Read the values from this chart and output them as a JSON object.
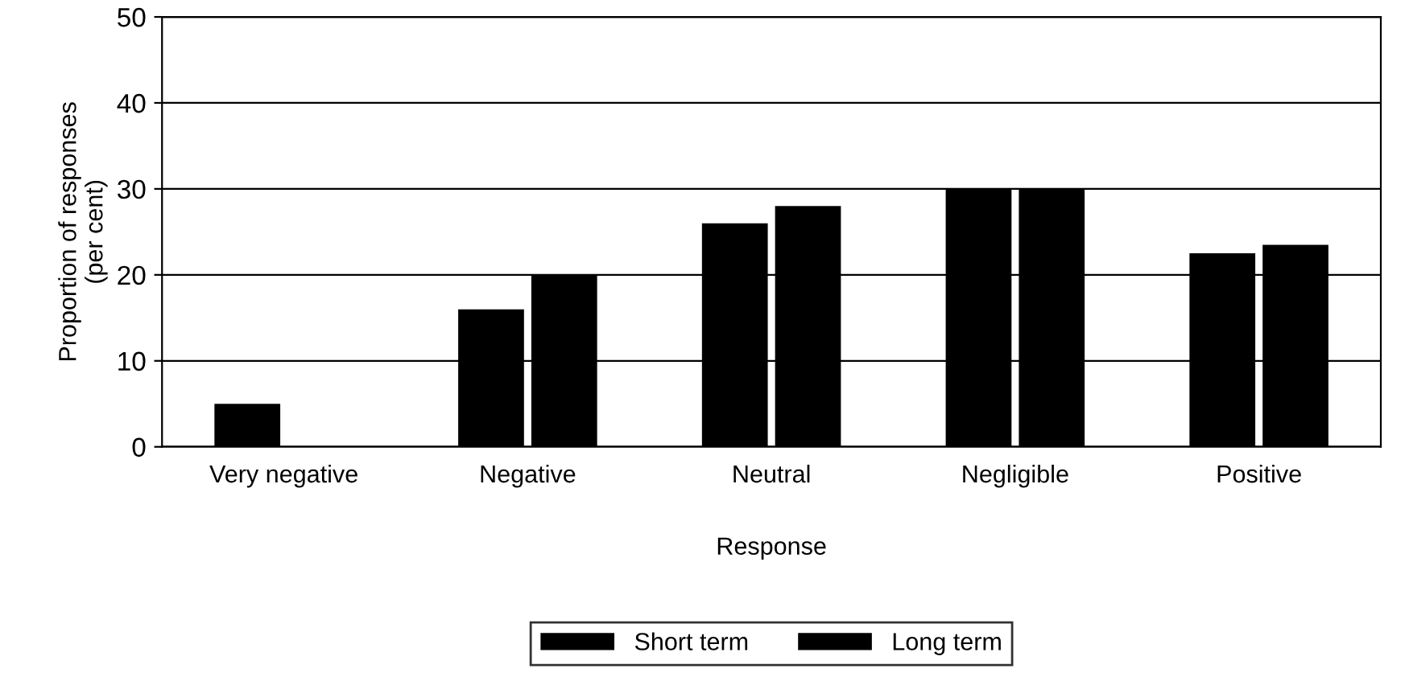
{
  "chart_data": {
    "type": "bar",
    "xlabel": "Response",
    "ylabel": "Proportion of responses\n(per cent)",
    "categories": [
      "Very negative",
      "Negative",
      "Neutral",
      "Negligible",
      "Positive"
    ],
    "series": [
      {
        "name": "Short term",
        "color": "#000000",
        "values": [
          5,
          16,
          26,
          30,
          22.5
        ]
      },
      {
        "name": "Long term",
        "color": "#000000",
        "values": [
          null,
          20,
          28,
          30,
          23.5
        ]
      }
    ],
    "ylim": [
      0,
      50
    ],
    "yticks": [
      0,
      10,
      20,
      30,
      40,
      50
    ],
    "grid": "y",
    "legend": "bottom"
  }
}
